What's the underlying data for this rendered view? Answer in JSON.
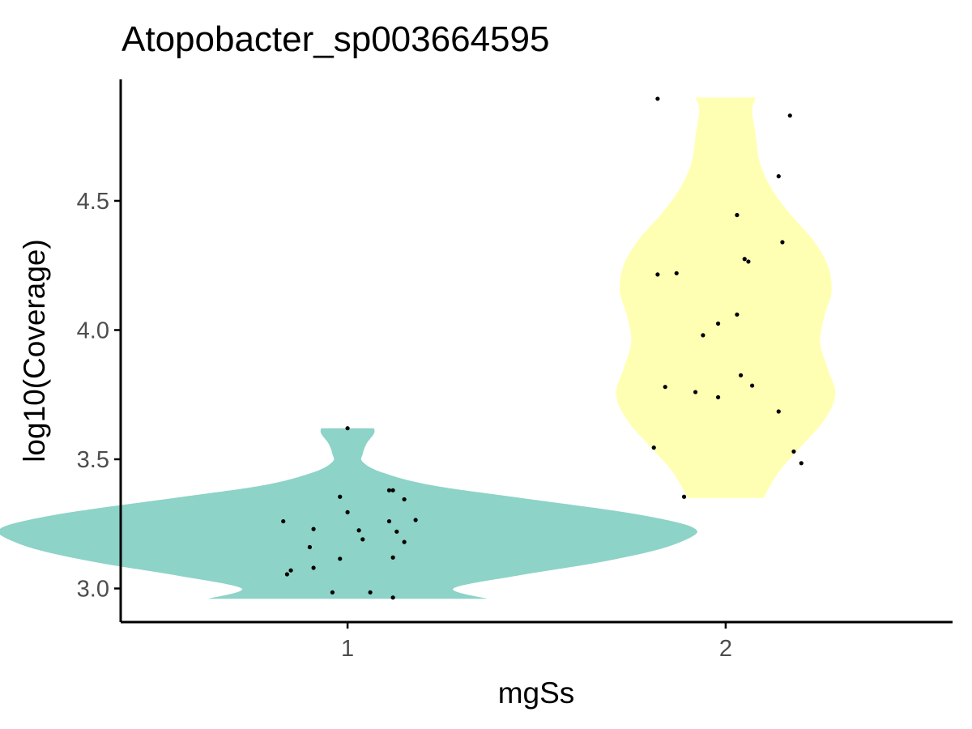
{
  "chart_data": {
    "type": "violin",
    "title": "Atopobacter_sp003664595",
    "xlabel": "mgSs",
    "ylabel": "log10(Coverage)",
    "categories": [
      "1",
      "2"
    ],
    "y_ticks": [
      3.0,
      3.5,
      4.0,
      4.5
    ],
    "y_tick_labels": [
      "3.0",
      "3.5",
      "4.0",
      "4.5"
    ],
    "ylim": [
      2.87,
      4.97
    ],
    "xlim": [
      0.4,
      2.6
    ],
    "grid": false,
    "legend": "none",
    "point_color": "#000000",
    "groups": [
      {
        "category": "1",
        "color": "#8dd3c7",
        "violin_profile": [
          [
            2.96,
            0.37
          ],
          [
            3.0,
            0.28
          ],
          [
            3.05,
            0.45
          ],
          [
            3.1,
            0.66
          ],
          [
            3.15,
            0.82
          ],
          [
            3.2,
            0.91
          ],
          [
            3.23,
            0.92
          ],
          [
            3.26,
            0.86
          ],
          [
            3.3,
            0.71
          ],
          [
            3.35,
            0.46
          ],
          [
            3.4,
            0.22
          ],
          [
            3.45,
            0.09
          ],
          [
            3.49,
            0.04
          ],
          [
            3.52,
            0.04
          ],
          [
            3.56,
            0.05
          ],
          [
            3.6,
            0.07
          ],
          [
            3.62,
            0.07
          ]
        ],
        "points": [
          [
            0.83,
            3.26
          ],
          [
            0.84,
            3.055
          ],
          [
            0.85,
            3.07
          ],
          [
            0.9,
            3.16
          ],
          [
            0.91,
            3.08
          ],
          [
            0.91,
            3.23
          ],
          [
            0.96,
            2.985
          ],
          [
            0.98,
            3.355
          ],
          [
            0.98,
            3.115
          ],
          [
            1.0,
            3.295
          ],
          [
            1.0,
            3.62
          ],
          [
            1.03,
            3.225
          ],
          [
            1.04,
            3.19
          ],
          [
            1.06,
            2.985
          ],
          [
            1.11,
            3.26
          ],
          [
            1.11,
            3.38
          ],
          [
            1.12,
            3.38
          ],
          [
            1.12,
            3.12
          ],
          [
            1.12,
            2.965
          ],
          [
            1.13,
            3.22
          ],
          [
            1.15,
            3.345
          ],
          [
            1.15,
            3.18
          ],
          [
            1.18,
            3.265
          ]
        ]
      },
      {
        "category": "2",
        "color": "#ffffb3",
        "violin_profile": [
          [
            3.35,
            0.1
          ],
          [
            3.45,
            0.14
          ],
          [
            3.55,
            0.2
          ],
          [
            3.65,
            0.26
          ],
          [
            3.75,
            0.29
          ],
          [
            3.85,
            0.27
          ],
          [
            3.95,
            0.25
          ],
          [
            4.05,
            0.26
          ],
          [
            4.15,
            0.28
          ],
          [
            4.25,
            0.27
          ],
          [
            4.35,
            0.23
          ],
          [
            4.45,
            0.17
          ],
          [
            4.55,
            0.12
          ],
          [
            4.65,
            0.09
          ],
          [
            4.75,
            0.08
          ],
          [
            4.85,
            0.07
          ],
          [
            4.9,
            0.08
          ]
        ],
        "points": [
          [
            1.81,
            3.545
          ],
          [
            1.82,
            4.895
          ],
          [
            1.82,
            4.215
          ],
          [
            1.84,
            3.78
          ],
          [
            1.87,
            4.22
          ],
          [
            1.89,
            3.355
          ],
          [
            1.92,
            3.76
          ],
          [
            1.94,
            3.98
          ],
          [
            1.98,
            3.74
          ],
          [
            1.98,
            4.025
          ],
          [
            2.03,
            4.06
          ],
          [
            2.03,
            4.445
          ],
          [
            2.04,
            3.825
          ],
          [
            2.05,
            4.275
          ],
          [
            2.06,
            4.265
          ],
          [
            2.07,
            3.785
          ],
          [
            2.14,
            4.595
          ],
          [
            2.14,
            3.685
          ],
          [
            2.15,
            4.34
          ],
          [
            2.17,
            4.83
          ],
          [
            2.18,
            3.53
          ],
          [
            2.2,
            3.485
          ]
        ]
      }
    ]
  }
}
